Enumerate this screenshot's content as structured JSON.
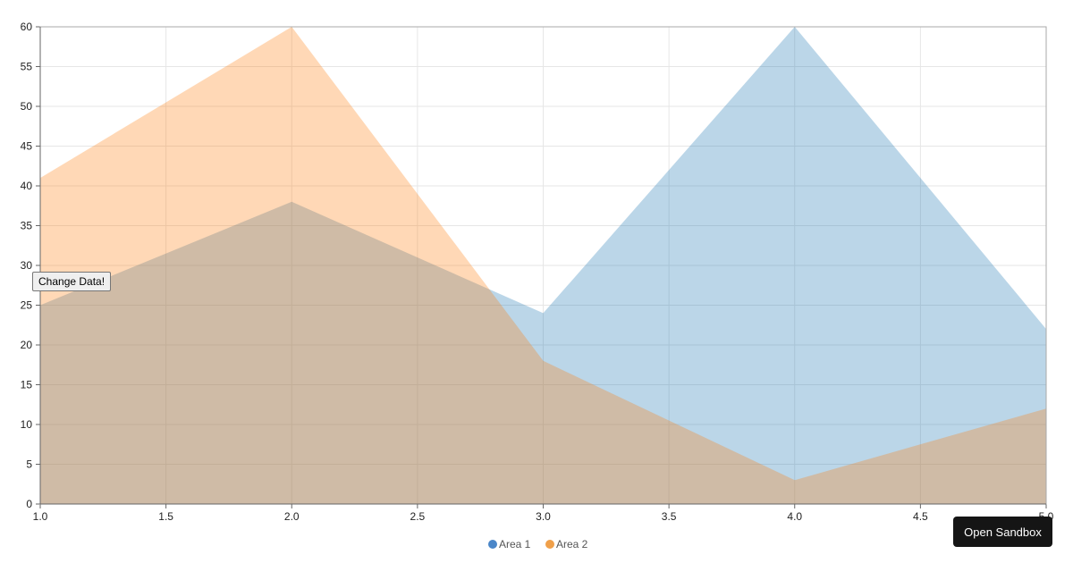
{
  "chart_data": {
    "type": "area",
    "x": [
      1,
      2,
      3,
      4,
      5
    ],
    "series": [
      {
        "name": "Area 1",
        "values": [
          25,
          38,
          24,
          60,
          22
        ],
        "color": "#1f77b4"
      },
      {
        "name": "Area 2",
        "values": [
          41,
          60,
          18,
          3,
          12
        ],
        "color": "#ff7f0e"
      }
    ],
    "xlim": [
      1,
      5
    ],
    "ylim": [
      0,
      60
    ],
    "x_ticks": [
      "1.0",
      "1.5",
      "2.0",
      "2.5",
      "3.0",
      "3.5",
      "4.0",
      "4.5",
      "5.0"
    ],
    "y_ticks": [
      "0",
      "5",
      "10",
      "15",
      "20",
      "25",
      "30",
      "35",
      "40",
      "45",
      "50",
      "55",
      "60"
    ],
    "grid": true,
    "legend_position": "bottom"
  },
  "controls": {
    "change_data_label": "Change Data!",
    "open_sandbox_label": "Open Sandbox"
  },
  "legend": {
    "items": [
      {
        "label": "Area 1",
        "color": "#4a86c8"
      },
      {
        "label": "Area 2",
        "color": "#f0a04a"
      }
    ]
  }
}
